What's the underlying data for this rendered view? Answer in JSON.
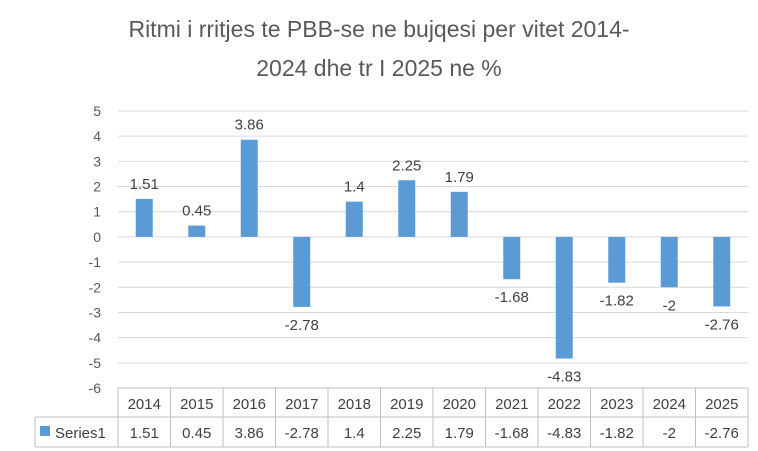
{
  "chart_data": {
    "type": "bar",
    "title_lines": [
      "Ritmi i rritjes te PBB-se ne bujqesi per vitet 2014-",
      "2024 dhe tr I 2025 ne %"
    ],
    "categories": [
      "2014",
      "2015",
      "2016",
      "2017",
      "2018",
      "2019",
      "2020",
      "2021",
      "2022",
      "2023",
      "2024",
      "2025"
    ],
    "series": [
      {
        "name": "Series1",
        "values": [
          1.51,
          0.45,
          3.86,
          -2.78,
          1.4,
          2.25,
          1.79,
          -1.68,
          -4.83,
          -1.82,
          -2,
          -2.76
        ],
        "labels": [
          "1.51",
          "0.45",
          "3.86",
          "-2.78",
          "1.4",
          "2.25",
          "1.79",
          "-1.68",
          "-4.83",
          "-1.82",
          "-2",
          "-2.76"
        ],
        "color": "#5B9BD5"
      }
    ],
    "yticks": [
      "5",
      "4",
      "3",
      "2",
      "1",
      "0",
      "-1",
      "-2",
      "-3",
      "-4",
      "-5",
      "-6"
    ],
    "ylim": [
      -6,
      5
    ],
    "grid": true,
    "legend": "data-table",
    "xlabel": "",
    "ylabel": ""
  }
}
